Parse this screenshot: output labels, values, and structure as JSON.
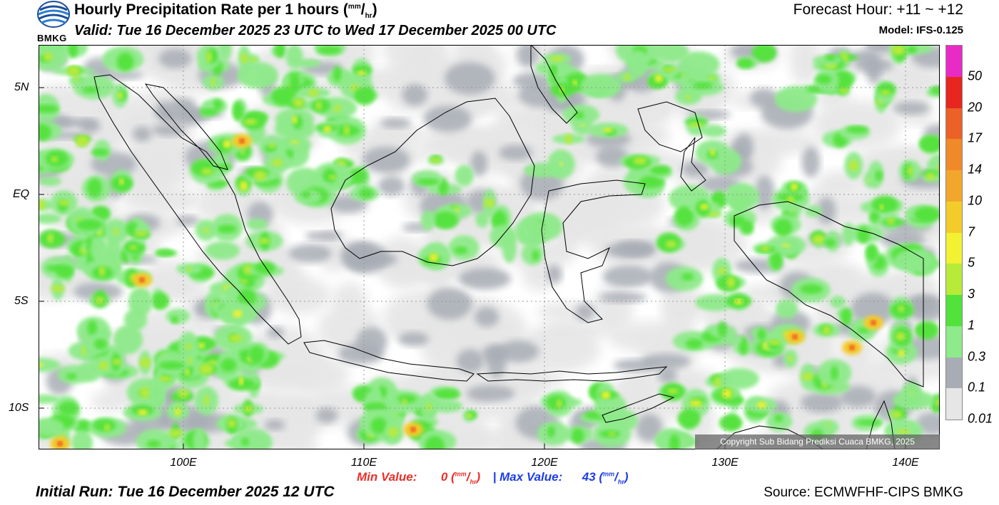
{
  "header": {
    "title": "Hourly Precipitation Rate per 1 hours",
    "title_unit_mm": "mm",
    "title_unit_hr": "hr",
    "valid": "Valid: Tue 16 December 2025 23 UTC to Wed 17 December 2025 00 UTC",
    "forecast_hour": "Forecast Hour: +11 ~ +12",
    "model": "Model: IFS-0.125",
    "logo_text": "BMKG"
  },
  "map": {
    "lat_labels": [
      "5N",
      "EQ",
      "5S",
      "10S"
    ],
    "lon_labels": [
      "100E",
      "110E",
      "120E",
      "130E",
      "140E"
    ],
    "copyright": "Copyright Sub Bidang Prediksi Cuaca BMKG, 2025"
  },
  "colorbar": {
    "labels": [
      "50",
      "20",
      "17",
      "14",
      "10",
      "7",
      "5",
      "3",
      "1",
      "0.3",
      "0.1",
      "0.01"
    ],
    "colors": [
      "#e82bc4",
      "#e6261f",
      "#ec6127",
      "#f0892a",
      "#f2a72c",
      "#f4cc2a",
      "#f2f232",
      "#b8ea3a",
      "#52e23b",
      "#8eea8a",
      "#a8adb5",
      "#e6e6e6"
    ]
  },
  "stats": {
    "min_label": "Min Value:",
    "min_value": "0",
    "separator": "|",
    "max_label": "Max Value:",
    "max_value": "43",
    "unit_mm": "mm",
    "unit_hr": "hr",
    "min_color": "#e8302a",
    "max_color": "#1f3ee6"
  },
  "footer": {
    "initial_run": "Initial Run: Tue 16 December 2025 12 UTC",
    "source": "Source: ECMWFHF-CIPS BMKG"
  }
}
